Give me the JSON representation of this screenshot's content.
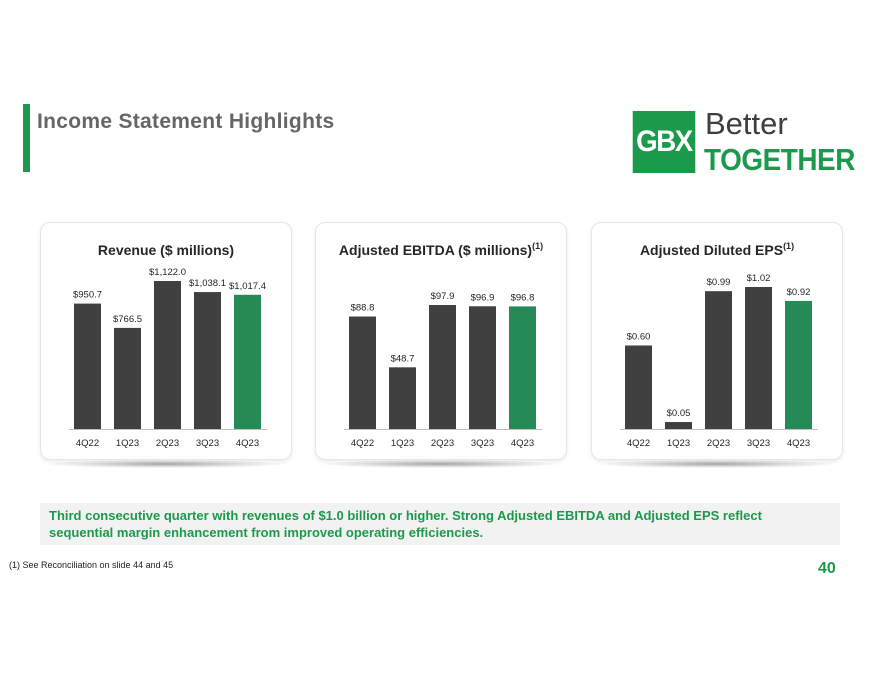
{
  "header": {
    "title": "Income Statement Highlights",
    "logo": {
      "box_text": "GBX",
      "line1": "Better",
      "line2": "TOGETHER"
    }
  },
  "colors": {
    "dark_bar": "#404040",
    "green_bar": "#258a55",
    "brand_green": "#1b9a4c"
  },
  "chart_data": [
    {
      "type": "bar",
      "title": "Revenue ($ millions)",
      "title_superscript": "",
      "categories": [
        "4Q22",
        "1Q23",
        "2Q23",
        "3Q23",
        "4Q23"
      ],
      "values": [
        950.7,
        766.5,
        1122.0,
        1038.1,
        1017.4
      ],
      "labels": [
        "$950.7",
        "$766.5",
        "$1,122.0",
        "$1,038.1",
        "$1,017.4"
      ],
      "highlight_index": 4,
      "ylim": [
        0,
        1122.0
      ],
      "grid": false,
      "legend": "none"
    },
    {
      "type": "bar",
      "title": "Adjusted EBITDA ($ millions)",
      "title_superscript": "(1)",
      "categories": [
        "4Q22",
        "1Q23",
        "2Q23",
        "3Q23",
        "4Q23"
      ],
      "values": [
        88.8,
        48.7,
        97.9,
        96.9,
        96.8
      ],
      "labels": [
        "$88.8",
        "$48.7",
        "$97.9",
        "$96.9",
        "$96.8"
      ],
      "highlight_index": 4,
      "ylim": [
        0,
        97.9
      ],
      "grid": false,
      "legend": "none"
    },
    {
      "type": "bar",
      "title": "Adjusted Diluted EPS",
      "title_superscript": "(1)",
      "categories": [
        "4Q22",
        "1Q23",
        "2Q23",
        "3Q23",
        "4Q23"
      ],
      "values": [
        0.6,
        0.05,
        0.99,
        1.02,
        0.92
      ],
      "labels": [
        "$0.60",
        "$0.05",
        "$0.99",
        "$1.02",
        "$0.92"
      ],
      "highlight_index": 4,
      "ylim": [
        0,
        1.02
      ],
      "grid": false,
      "legend": "none"
    }
  ],
  "callout": "Third consecutive quarter with revenues of $1.0 billion or higher. Strong Adjusted EBITDA and Adjusted EPS reflect sequential margin enhancement from improved operating efficiencies.",
  "footnote": "(1) See Reconciliation on slide 44 and 45",
  "page_number": "40"
}
